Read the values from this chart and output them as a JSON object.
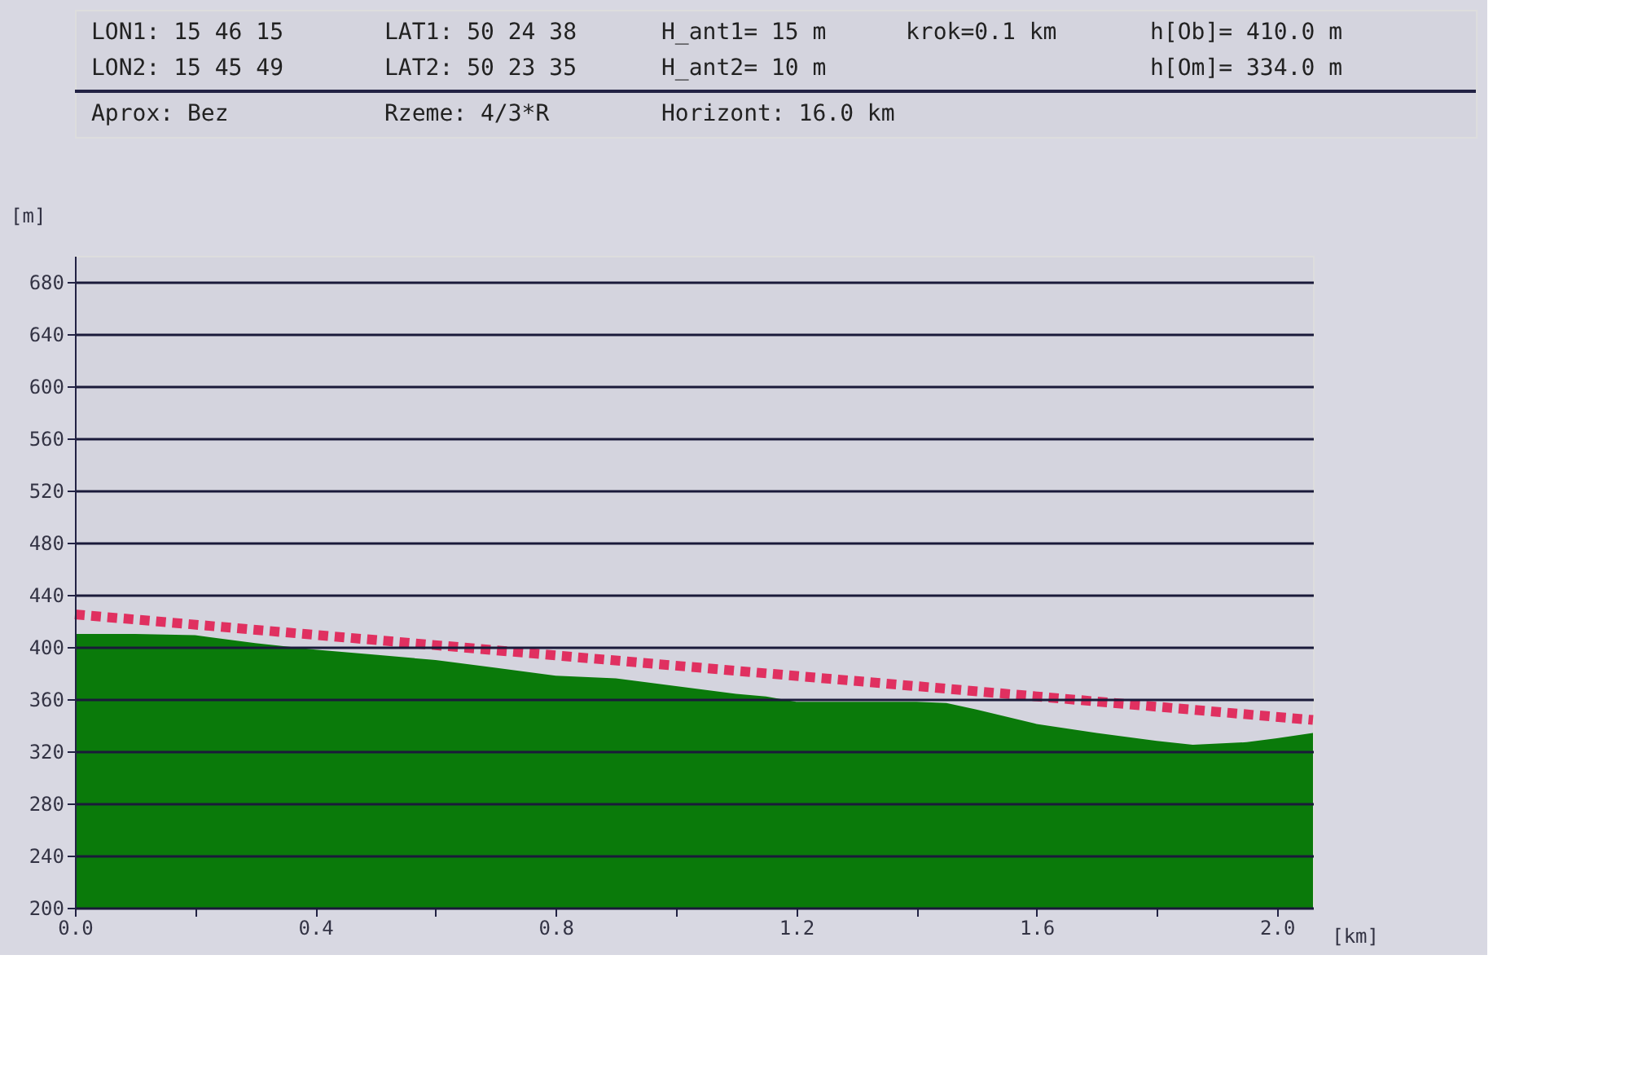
{
  "chart_data": {
    "type": "area",
    "xlabel": "[km]",
    "ylabel": "[m]",
    "annotations": [
      "LON1: 15 46 15",
      "LAT1: 50 24 38",
      "H_ant1= 15  m",
      "krok=0.1  km",
      "h[Ob]=  410.0  m",
      "LON2: 15 45 49",
      "LAT2: 50 23 35",
      "H_ant2= 10  m",
      "h[Om]=  334.0  m",
      "Aprox: Bez",
      "Rzeme:  4/3*R",
      "Horizont:  16.0  km"
    ],
    "series": [
      {
        "color": "#0a7a0a",
        "x": [
          0,
          0.1,
          0.2,
          0.3,
          0.4,
          0.5,
          0.6,
          0.7,
          0.8,
          0.9,
          1.0,
          1.1,
          1.15,
          1.2,
          1.3,
          1.4,
          1.45,
          1.5,
          1.6,
          1.7,
          1.8,
          1.86,
          1.95,
          2.0,
          2.06
        ],
        "values": [
          410,
          410,
          409,
          403,
          398,
          394,
          390,
          384,
          378,
          376,
          370,
          364,
          362,
          358,
          358,
          358,
          357,
          352,
          341,
          334,
          328,
          325,
          327,
          330,
          334
        ]
      },
      {
        "type": "line",
        "color": "#e03060",
        "line_style": "dashed",
        "x": [
          0,
          2.06
        ],
        "values": [
          425,
          344
        ]
      }
    ],
    "xlim": [
      0,
      2.06
    ],
    "xticks": [
      {
        "value": 0,
        "label": "0.0"
      },
      {
        "value": 0.2,
        "label": null
      },
      0.4,
      {
        "value": 0.6,
        "label": null
      },
      0.8,
      {
        "value": 1.0,
        "label": null
      },
      1.2,
      {
        "value": 1.4,
        "label": null
      },
      1.6,
      {
        "value": 1.8,
        "label": null
      },
      {
        "value": 2,
        "label": "2.0"
      }
    ],
    "ylim": [
      200,
      700
    ],
    "yticks": [
      200,
      240,
      280,
      320,
      360,
      400,
      440,
      480,
      520,
      560,
      600,
      640,
      680
    ],
    "grid": "y"
  }
}
